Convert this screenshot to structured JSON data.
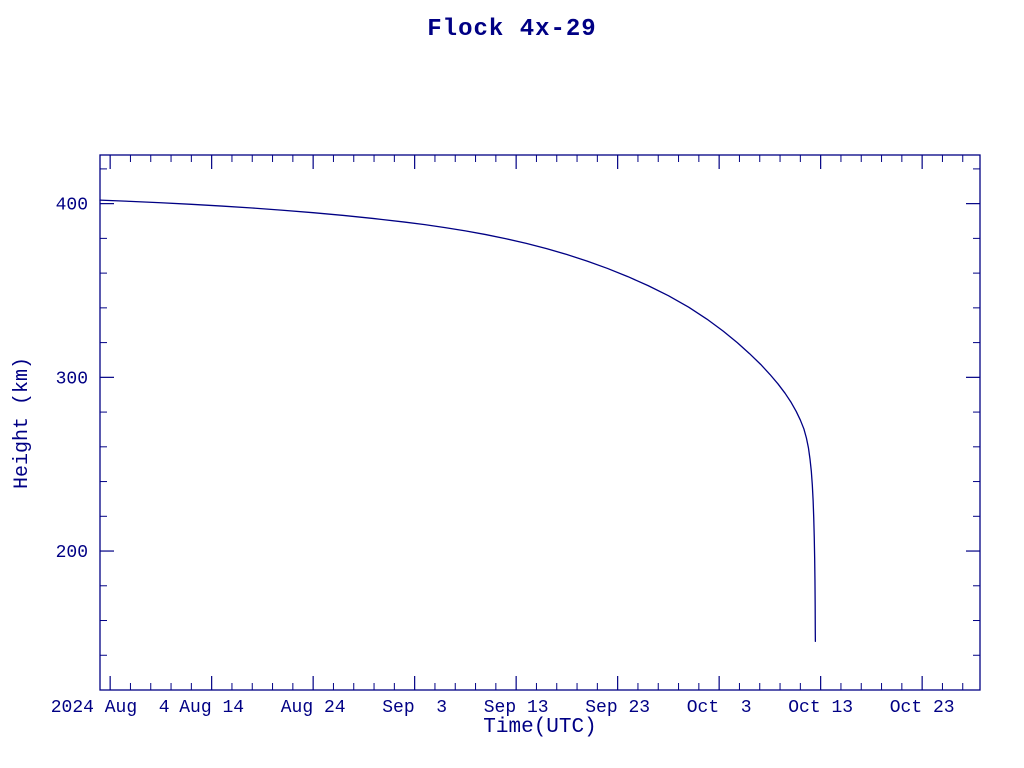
{
  "chart_data": {
    "type": "line",
    "title": "Flock 4x-29",
    "xlabel": "Time(UTC)",
    "ylabel": "Height (km)",
    "color": "#000084",
    "background": "#ffffff",
    "legend": "none",
    "grid": false,
    "x_unit": "day of period (2024 Aug 1 = 1)",
    "xlim": [
      3,
      89.7
    ],
    "ylim": [
      120,
      428
    ],
    "x_major_ticks": [
      {
        "day": 4,
        "label": "2024 Aug  4"
      },
      {
        "day": 14,
        "label": "Aug 14"
      },
      {
        "day": 24,
        "label": "Aug 24"
      },
      {
        "day": 34,
        "label": "Sep  3"
      },
      {
        "day": 44,
        "label": "Sep 13"
      },
      {
        "day": 54,
        "label": "Sep 23"
      },
      {
        "day": 64,
        "label": "Oct  3"
      },
      {
        "day": 74,
        "label": "Oct 13"
      },
      {
        "day": 84,
        "label": "Oct 23"
      }
    ],
    "x_minor_step": 2,
    "y_major_ticks": [
      {
        "value": 200,
        "label": "200"
      },
      {
        "value": 300,
        "label": "300"
      },
      {
        "value": 400,
        "label": "400"
      }
    ],
    "y_minor_step": 20,
    "series": [
      {
        "name": "Flock 4x-29 height",
        "points": [
          [
            3,
            402
          ],
          [
            6,
            401.3
          ],
          [
            9,
            400.5
          ],
          [
            12,
            399.6
          ],
          [
            15,
            398.6
          ],
          [
            18,
            397.5
          ],
          [
            21,
            396.2
          ],
          [
            24,
            394.8
          ],
          [
            27,
            393.2
          ],
          [
            30,
            391.4
          ],
          [
            33,
            389.4
          ],
          [
            35,
            387.9
          ],
          [
            37,
            386.2
          ],
          [
            39,
            384.3
          ],
          [
            41,
            382.2
          ],
          [
            43,
            379.8
          ],
          [
            45,
            377.1
          ],
          [
            47,
            374.1
          ],
          [
            49,
            370.7
          ],
          [
            51,
            366.9
          ],
          [
            53,
            362.7
          ],
          [
            55,
            358.0
          ],
          [
            57,
            352.8
          ],
          [
            59,
            347.0
          ],
          [
            61,
            340.4
          ],
          [
            62.8,
            333.5
          ],
          [
            64.4,
            326.6
          ],
          [
            65.8,
            319.9
          ],
          [
            67,
            313.6
          ],
          [
            68.1,
            307.4
          ],
          [
            69,
            301.7
          ],
          [
            69.8,
            296.2
          ],
          [
            70.5,
            290.8
          ],
          [
            71.1,
            285.5
          ],
          [
            71.6,
            280.3
          ],
          [
            72,
            275.4
          ],
          [
            72.35,
            270.3
          ],
          [
            72.6,
            265.0
          ],
          [
            72.8,
            259.3
          ],
          [
            72.95,
            253.0
          ],
          [
            73.08,
            246.0
          ],
          [
            73.18,
            238.0
          ],
          [
            73.26,
            229.0
          ],
          [
            73.32,
            219.0
          ],
          [
            73.37,
            208.0
          ],
          [
            73.41,
            196.0
          ],
          [
            73.44,
            183.0
          ],
          [
            73.46,
            169.0
          ],
          [
            73.47,
            155.0
          ],
          [
            73.48,
            148.0
          ]
        ]
      }
    ]
  }
}
